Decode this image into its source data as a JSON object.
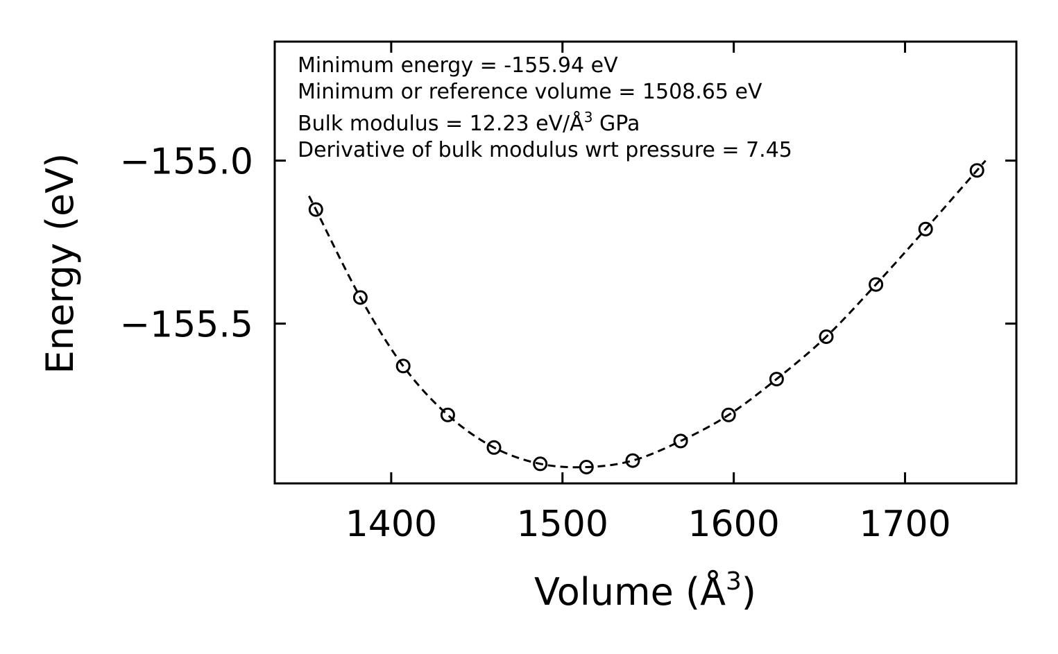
{
  "chart_data": {
    "type": "scatter",
    "title": "",
    "xlabel": "Volume (Å",
    "xlabel_sup": "3",
    "xlabel_end": ")",
    "ylabel": "Energy (eV)",
    "xlim": [
      1332,
      1765
    ],
    "ylim": [
      -155.99,
      -154.635
    ],
    "xticks": [
      1400,
      1500,
      1600,
      1700
    ],
    "xtick_labels": [
      "1400",
      "1500",
      "1600",
      "1700"
    ],
    "yticks": [
      -155.0,
      -155.5
    ],
    "ytick_labels": [
      "−155.0",
      "−155.5"
    ],
    "grid": false,
    "series": [
      {
        "name": "data",
        "marker": "open-circle",
        "x": [
          1356,
          1382,
          1407,
          1433,
          1460,
          1487,
          1514,
          1541,
          1569,
          1597,
          1625,
          1654,
          1683,
          1712,
          1742
        ],
        "y": [
          -155.15,
          -155.42,
          -155.63,
          -155.78,
          -155.88,
          -155.93,
          -155.94,
          -155.92,
          -155.86,
          -155.78,
          -155.67,
          -155.54,
          -155.38,
          -155.21,
          -155.03
        ]
      },
      {
        "name": "fit",
        "line_style": "dashed",
        "E0": -155.94,
        "V0": 1508.65,
        "x_range": [
          1352,
          1747
        ]
      }
    ],
    "annotations": [
      {
        "id": "min_energy",
        "text": "Minimum energy = -155.94 eV"
      },
      {
        "id": "min_volume",
        "text": "Minimum or reference volume = 1508.65 eV"
      },
      {
        "id": "bulk_modulus",
        "text_before": "Bulk modulus = 12.23 eV/Å",
        "sup": "3",
        "text_after": " GPa"
      },
      {
        "id": "bulk_deriv",
        "text": "Derivative of bulk modulus wrt pressure = 7.45"
      }
    ],
    "colors": {
      "axes": "#000000",
      "markers": "#000000",
      "fit_line": "#000000",
      "background": "#ffffff"
    }
  }
}
